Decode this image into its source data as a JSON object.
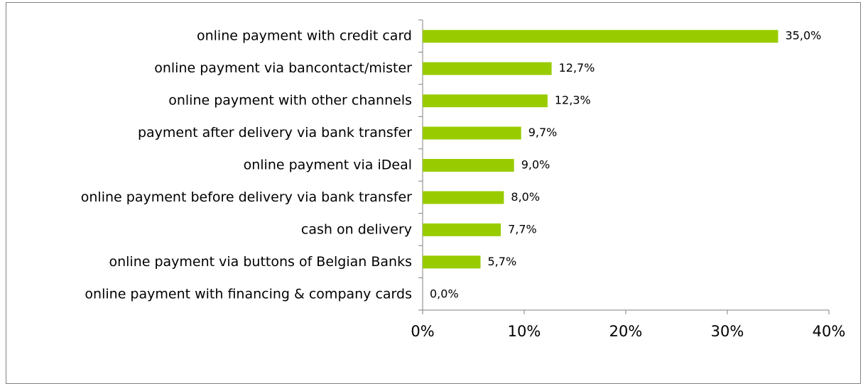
{
  "chart_data": {
    "type": "hbar",
    "categories": [
      "online payment with credit card",
      "online payment via bancontact/mister",
      "online payment with other channels",
      "payment after delivery via bank transfer",
      "online payment via iDeal",
      "online payment before delivery via bank transfer",
      "cash on delivery",
      "online payment via buttons of Belgian Banks",
      "online payment with financing & company cards"
    ],
    "values": [
      35.0,
      12.7,
      12.3,
      9.7,
      9.0,
      8.0,
      7.7,
      5.7,
      0.0
    ],
    "value_labels": [
      "35,0%",
      "12,7%",
      "12,3%",
      "9,7%",
      "9,0%",
      "8,0%",
      "7,7%",
      "5,7%",
      "0,0%"
    ],
    "color": "#99cc00",
    "xlim": [
      0,
      40
    ],
    "xticks": [
      {
        "value": 0,
        "label": "0%"
      },
      {
        "value": 10,
        "label": "10%"
      },
      {
        "value": 20,
        "label": "20%"
      },
      {
        "value": 30,
        "label": "30%"
      },
      {
        "value": 40,
        "label": "40%"
      }
    ]
  }
}
